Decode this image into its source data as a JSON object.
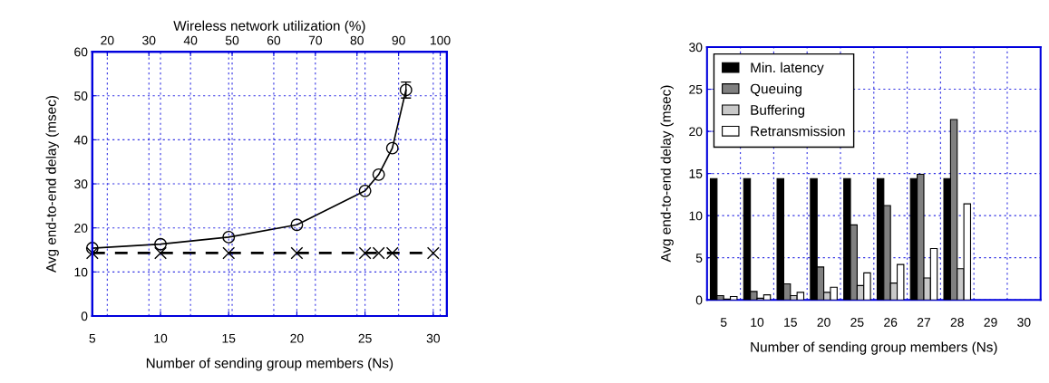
{
  "chart_data": [
    {
      "type": "line",
      "xlabel": "Number of sending group members (Ns)",
      "x2label": "Wireless network utilization (%)",
      "ylabel": "Avg end-to-end delay (msec)",
      "xlim": [
        5,
        31
      ],
      "xticks": [
        5,
        10,
        15,
        20,
        25,
        30
      ],
      "x2lim": [
        16.4,
        101.6
      ],
      "x2ticks": [
        20,
        30,
        40,
        50,
        60,
        70,
        80,
        90,
        100
      ],
      "ylim": [
        0,
        60
      ],
      "yticks": [
        0,
        10,
        20,
        30,
        40,
        50,
        60
      ],
      "grid": true,
      "series": [
        {
          "type": "line",
          "color": "#000000",
          "marker": "circle",
          "line_style": "solid",
          "x": [
            5,
            10,
            15,
            20,
            25,
            26,
            27,
            28
          ],
          "values": [
            15.4,
            16.3,
            17.9,
            20.7,
            28.4,
            32.1,
            38.1,
            51.3
          ],
          "errors": [
            null,
            null,
            null,
            null,
            null,
            null,
            null,
            1.8
          ]
        },
        {
          "type": "line",
          "color": "#000000",
          "marker": "cross",
          "line_style": "dashed",
          "x": [
            5,
            10,
            15,
            20,
            25,
            26,
            27,
            30
          ],
          "values": [
            14.3,
            14.3,
            14.3,
            14.3,
            14.3,
            14.3,
            14.3,
            14.3
          ]
        }
      ]
    },
    {
      "type": "bar",
      "xlabel": "Number of sending group members (Ns)",
      "ylabel": "Avg end-to-end delay (msec)",
      "categories": [
        "5",
        "10",
        "15",
        "20",
        "25",
        "26",
        "27",
        "28",
        "29",
        "30"
      ],
      "ylim": [
        0,
        30
      ],
      "yticks": [
        0,
        5,
        10,
        15,
        20,
        25,
        30
      ],
      "grid": true,
      "legend": "top left",
      "series": [
        {
          "name": "Min. latency",
          "color": "#000000",
          "values": [
            14.4,
            14.4,
            14.4,
            14.4,
            14.4,
            14.4,
            14.4,
            14.4,
            null,
            null
          ]
        },
        {
          "name": "Queuing",
          "color": "#808080",
          "values": [
            0.5,
            1.0,
            1.9,
            3.9,
            8.9,
            11.2,
            14.9,
            21.4,
            null,
            null
          ]
        },
        {
          "name": "Buffering",
          "color": "#c8c8c8",
          "values": [
            0.1,
            0.2,
            0.5,
            0.9,
            1.7,
            2.0,
            2.6,
            3.7,
            null,
            null
          ]
        },
        {
          "name": "Retransmission",
          "color": "#ffffff",
          "values": [
            0.4,
            0.6,
            0.9,
            1.5,
            3.2,
            4.2,
            6.1,
            11.4,
            null,
            null
          ]
        }
      ]
    }
  ]
}
